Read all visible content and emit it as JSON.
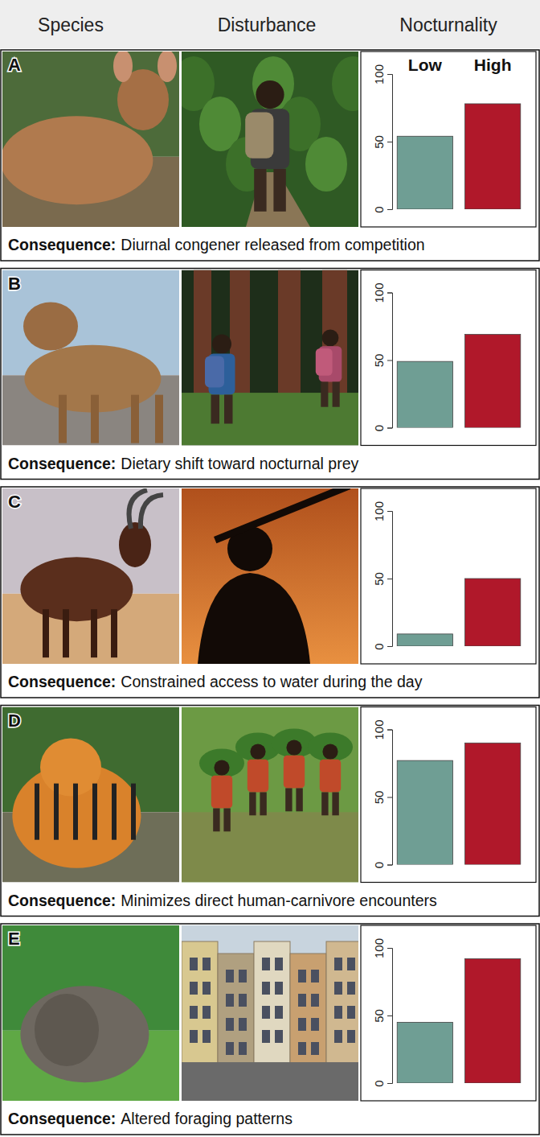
{
  "headers": [
    "Species",
    "Disturbance",
    "Nocturnality"
  ],
  "consequence_label": "Consequence:",
  "chart_data": [
    {
      "type": "bar",
      "panel": "A",
      "consequence": "Diurnal congener released from competition",
      "categories": [
        "Low",
        "High"
      ],
      "values": [
        54,
        78
      ],
      "colors": [
        "#6f9e94",
        "#b0182a"
      ],
      "ylim": [
        0,
        100
      ],
      "yticks": [
        0,
        50,
        100
      ]
    },
    {
      "type": "bar",
      "panel": "B",
      "consequence": "Dietary shift toward nocturnal prey",
      "categories": [
        null,
        null
      ],
      "values": [
        49,
        69
      ],
      "colors": [
        "#6f9e94",
        "#b0182a"
      ],
      "ylim": [
        0,
        100
      ],
      "yticks": [
        0,
        50,
        100
      ]
    },
    {
      "type": "bar",
      "panel": "C",
      "consequence": "Constrained access to water during the day",
      "categories": [
        null,
        null
      ],
      "values": [
        9,
        50
      ],
      "colors": [
        "#6f9e94",
        "#b0182a"
      ],
      "ylim": [
        0,
        100
      ],
      "yticks": [
        0,
        50,
        100
      ]
    },
    {
      "type": "bar",
      "panel": "D",
      "consequence": "Minimizes direct human-carnivore encounters",
      "categories": [
        null,
        null
      ],
      "values": [
        77,
        90
      ],
      "colors": [
        "#6f9e94",
        "#b0182a"
      ],
      "ylim": [
        0,
        100
      ],
      "yticks": [
        0,
        50,
        100
      ]
    },
    {
      "type": "bar",
      "panel": "E",
      "consequence": "Altered foraging patterns",
      "categories": [
        null,
        null
      ],
      "values": [
        45,
        92
      ],
      "colors": [
        "#6f9e94",
        "#b0182a"
      ],
      "ylim": [
        0,
        100
      ],
      "yticks": [
        0,
        50,
        100
      ]
    }
  ]
}
